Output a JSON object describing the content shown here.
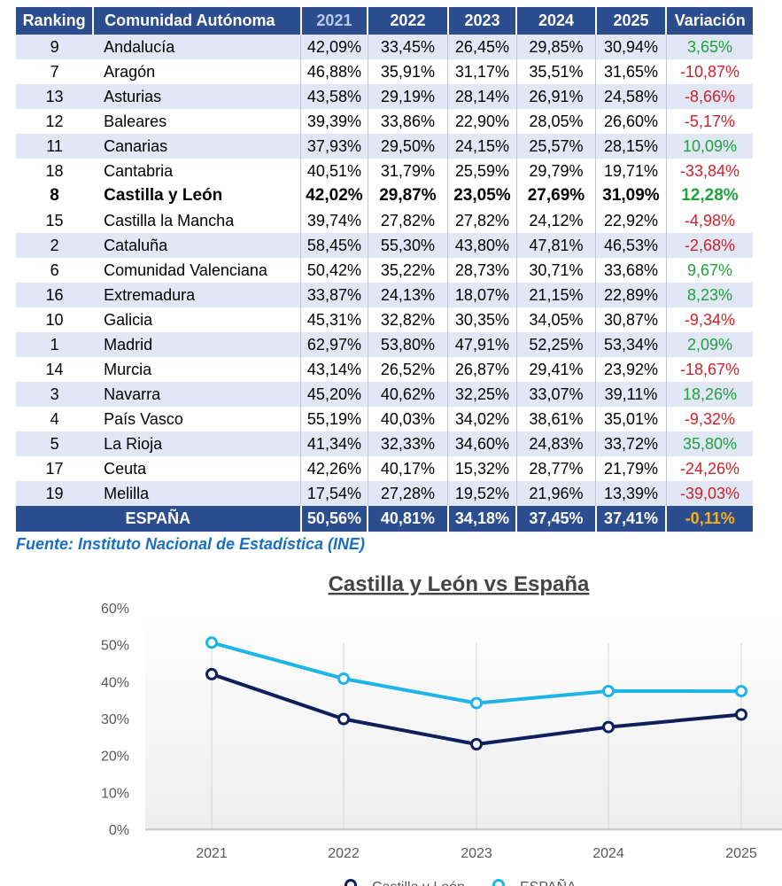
{
  "table": {
    "headers": [
      "Ranking",
      "Comunidad Autónoma",
      "2021",
      "2022",
      "2023",
      "2024",
      "2025",
      "Variación"
    ],
    "rows": [
      {
        "rank": "9",
        "name": "Andalucía",
        "vals": [
          "42,09%",
          "33,45%",
          "26,45%",
          "29,85%",
          "30,94%"
        ],
        "var": "3,65%"
      },
      {
        "rank": "7",
        "name": "Aragón",
        "vals": [
          "46,88%",
          "35,91%",
          "31,17%",
          "35,51%",
          "31,65%"
        ],
        "var": "-10,87%"
      },
      {
        "rank": "13",
        "name": "Asturias",
        "vals": [
          "43,58%",
          "29,19%",
          "28,14%",
          "26,91%",
          "24,58%"
        ],
        "var": "-8,66%"
      },
      {
        "rank": "12",
        "name": "Baleares",
        "vals": [
          "39,39%",
          "33,86%",
          "22,90%",
          "28,05%",
          "26,60%"
        ],
        "var": "-5,17%"
      },
      {
        "rank": "11",
        "name": "Canarias",
        "vals": [
          "37,93%",
          "29,50%",
          "24,15%",
          "25,57%",
          "28,15%"
        ],
        "var": "10,09%"
      },
      {
        "rank": "18",
        "name": "Cantabria",
        "vals": [
          "40,51%",
          "31,79%",
          "25,59%",
          "29,79%",
          "19,71%"
        ],
        "var": "-33,84%"
      },
      {
        "rank": "8",
        "name": "Castilla y León",
        "vals": [
          "42,02%",
          "29,87%",
          "23,05%",
          "27,69%",
          "31,09%"
        ],
        "var": "12,28%"
      },
      {
        "rank": "15",
        "name": "Castilla la Mancha",
        "vals": [
          "39,74%",
          "27,82%",
          "27,82%",
          "24,12%",
          "22,92%"
        ],
        "var": "-4,98%"
      },
      {
        "rank": "2",
        "name": "Cataluña",
        "vals": [
          "58,45%",
          "55,30%",
          "43,80%",
          "47,81%",
          "46,53%"
        ],
        "var": "-2,68%"
      },
      {
        "rank": "6",
        "name": "Comunidad Valenciana",
        "vals": [
          "50,42%",
          "35,22%",
          "28,73%",
          "30,71%",
          "33,68%"
        ],
        "var": "9,67%"
      },
      {
        "rank": "16",
        "name": "Extremadura",
        "vals": [
          "33,87%",
          "24,13%",
          "18,07%",
          "21,15%",
          "22,89%"
        ],
        "var": "8,23%"
      },
      {
        "rank": "10",
        "name": "Galicia",
        "vals": [
          "45,31%",
          "32,82%",
          "30,35%",
          "34,05%",
          "30,87%"
        ],
        "var": "-9,34%"
      },
      {
        "rank": "1",
        "name": "Madrid",
        "vals": [
          "62,97%",
          "53,80%",
          "47,91%",
          "52,25%",
          "53,34%"
        ],
        "var": "2,09%"
      },
      {
        "rank": "14",
        "name": "Murcia",
        "vals": [
          "43,14%",
          "26,52%",
          "26,87%",
          "29,41%",
          "23,92%"
        ],
        "var": "-18,67%"
      },
      {
        "rank": "3",
        "name": "Navarra",
        "vals": [
          "45,20%",
          "40,62%",
          "32,25%",
          "33,07%",
          "39,11%"
        ],
        "var": "18,26%"
      },
      {
        "rank": "4",
        "name": "País Vasco",
        "vals": [
          "55,19%",
          "40,03%",
          "34,02%",
          "38,61%",
          "35,01%"
        ],
        "var": "-9,32%"
      },
      {
        "rank": "5",
        "name": "La Rioja",
        "vals": [
          "41,34%",
          "32,33%",
          "34,60%",
          "24,83%",
          "33,72%"
        ],
        "var": "35,80%"
      },
      {
        "rank": "17",
        "name": "Ceuta",
        "vals": [
          "42,26%",
          "40,17%",
          "15,32%",
          "28,77%",
          "21,79%"
        ],
        "var": "-24,26%"
      },
      {
        "rank": "19",
        "name": "Melilla",
        "vals": [
          "17,54%",
          "27,28%",
          "19,52%",
          "21,96%",
          "13,39%"
        ],
        "var": "-39,03%"
      }
    ],
    "total": {
      "name": "ESPAÑA",
      "vals": [
        "50,56%",
        "40,81%",
        "34,18%",
        "37,45%",
        "37,41%"
      ],
      "var": "-0,11%"
    }
  },
  "source": "Fuente: Instituto Nacional de Estadística (INE)",
  "colors": {
    "header_bg": "#2c4e8e",
    "row_band": "#e2e7f5",
    "positive": "#1ea23c",
    "negative": "#d0212a",
    "total_var": "#f5b11a",
    "cyl_line": "#0e1f5b",
    "spain_line": "#1fb4e8"
  },
  "chart_data": {
    "type": "line",
    "title": "Castilla y León vs España",
    "x": [
      "2021",
      "2022",
      "2023",
      "2024",
      "2025"
    ],
    "yticks": [
      "0%",
      "10%",
      "20%",
      "30%",
      "40%",
      "50%",
      "60%"
    ],
    "ylim": [
      0,
      60
    ],
    "grid": "vertical",
    "legend": "bottom",
    "series": [
      {
        "name": "Castilla y León",
        "color": "#0e1f5b",
        "values": [
          42.02,
          29.87,
          23.05,
          27.69,
          31.09
        ]
      },
      {
        "name": "ESPAÑA",
        "color": "#1fb4e8",
        "values": [
          50.56,
          40.81,
          34.18,
          37.45,
          37.41
        ]
      }
    ]
  }
}
